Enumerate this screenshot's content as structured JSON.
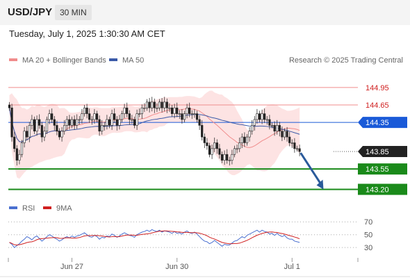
{
  "header": {
    "symbol": "USD/JPY",
    "timeframe": "30 MIN"
  },
  "datetime": "Tuesday, July 1, 2025 1:30:30 AM CET",
  "credit": "Research © 2025 Trading Central",
  "colors": {
    "bollinger": "#f08c8c",
    "ma50": "#3a5aa8",
    "resistance": "#f08c8c",
    "support": "#1a8a1a",
    "current": "#1a5ad8",
    "arrow": "#2a5a9a",
    "rsi": "#4a70d0",
    "rsi_ma": "#d02020"
  },
  "chart_data": [
    {
      "type": "candlestick",
      "legend": [
        {
          "label": "MA 20 + Bollinger Bands",
          "color": "#f08c8c"
        },
        {
          "label": "MA 50",
          "color": "#3a5aa8"
        }
      ],
      "legend_position": "top-left",
      "x_ticks": [
        {
          "label": "Jun 27",
          "bar": 25
        },
        {
          "label": "Jun 30",
          "bar": 67
        },
        {
          "label": "Jul 1",
          "bar": 113
        }
      ],
      "ylim": [
        143.05,
        145.2
      ],
      "levels": [
        {
          "label": "144.95",
          "value": 144.95,
          "kind": "resistance"
        },
        {
          "label": "144.65",
          "value": 144.65,
          "kind": "resistance"
        },
        {
          "label": "144.35",
          "value": 144.35,
          "kind": "current"
        },
        {
          "label": "143.85",
          "value": 143.85,
          "kind": "last"
        },
        {
          "label": "143.55",
          "value": 143.55,
          "kind": "support"
        },
        {
          "label": "143.20",
          "value": 143.2,
          "kind": "support"
        }
      ],
      "forecast_arrow": {
        "from": {
          "bar": 117,
          "value": 143.85
        },
        "to": {
          "bar": 125,
          "value": 143.2
        }
      },
      "closes": [
        144.6,
        144.1,
        143.9,
        143.7,
        143.8,
        144.0,
        144.2,
        144.1,
        144.3,
        144.4,
        144.2,
        144.4,
        144.3,
        144.1,
        144.2,
        144.4,
        144.5,
        144.4,
        144.3,
        144.2,
        144.1,
        144.2,
        144.3,
        144.4,
        144.3,
        144.4,
        144.3,
        144.4,
        144.4,
        144.5,
        144.6,
        144.5,
        144.4,
        144.4,
        144.5,
        144.4,
        144.2,
        144.3,
        144.3,
        144.4,
        144.3,
        144.5,
        144.4,
        144.3,
        144.4,
        144.5,
        144.6,
        144.5,
        144.4,
        144.4,
        144.3,
        144.5,
        144.5,
        144.6,
        144.6,
        144.7,
        144.6,
        144.7,
        144.6,
        144.6,
        144.7,
        144.6,
        144.7,
        144.6,
        144.6,
        144.5,
        144.6,
        144.5,
        144.5,
        144.4,
        144.5,
        144.6,
        144.5,
        144.5,
        144.5,
        144.4,
        144.3,
        144.1,
        144.0,
        143.95,
        143.8,
        143.9,
        144.0,
        143.9,
        143.8,
        143.7,
        143.8,
        143.7,
        143.7,
        143.8,
        143.9,
        143.9,
        144.0,
        144.1,
        144.0,
        144.1,
        144.2,
        144.3,
        144.4,
        144.5,
        144.4,
        144.5,
        144.4,
        144.4,
        144.3,
        144.3,
        144.2,
        144.3,
        144.2,
        144.1,
        144.2,
        144.1,
        144.0,
        144.0,
        143.9,
        143.9,
        143.85
      ]
    },
    {
      "type": "line",
      "legend": [
        {
          "label": "RSI",
          "color": "#4a70d0"
        },
        {
          "label": "9MA",
          "color": "#d02020"
        }
      ],
      "ylim": [
        15,
        80
      ],
      "y_ticks": [
        70,
        50,
        30
      ],
      "rsi": [
        38,
        35,
        30,
        33,
        36,
        40,
        43,
        47,
        45,
        42,
        46,
        48,
        44,
        40,
        43,
        47,
        50,
        48,
        45,
        43,
        40,
        42,
        45,
        47,
        45,
        48,
        46,
        48,
        49,
        51,
        53,
        50,
        47,
        46,
        49,
        47,
        43,
        46,
        45,
        48,
        47,
        51,
        49,
        46,
        48,
        51,
        53,
        51,
        49,
        48,
        46,
        50,
        52,
        54,
        55,
        57,
        55,
        58,
        56,
        55,
        57,
        54,
        56,
        55,
        54,
        52,
        55,
        52,
        53,
        51,
        54,
        56,
        53,
        52,
        54,
        51,
        47,
        43,
        40,
        39,
        36,
        38,
        41,
        38,
        35,
        32,
        35,
        34,
        34,
        37,
        40,
        41,
        44,
        47,
        45,
        49,
        51,
        53,
        55,
        57,
        54,
        57,
        55,
        54,
        51,
        52,
        49,
        52,
        49,
        47,
        49,
        45,
        43,
        43,
        40,
        39,
        38
      ]
    }
  ]
}
